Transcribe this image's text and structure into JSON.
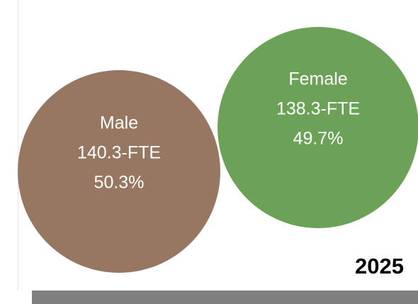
{
  "chart_data": {
    "type": "circles",
    "title": "2025",
    "categories": [
      "Male",
      "Female"
    ],
    "values": [
      140.3,
      138.3
    ],
    "value_labels": [
      "140.3-FTE",
      "138.3-FTE"
    ],
    "percentages": [
      50.3,
      49.7
    ],
    "percentage_labels": [
      "50.3%",
      "49.7%"
    ],
    "colors": [
      "#977761",
      "#6ba257"
    ]
  }
}
